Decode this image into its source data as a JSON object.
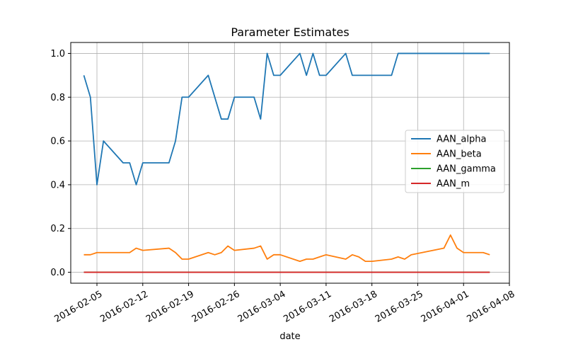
{
  "chart_data": {
    "type": "line",
    "title": "Parameter Estimates",
    "xlabel": "date",
    "ylabel": "",
    "grid": true,
    "legend_position": "center-right",
    "xlim": [
      "2016-02-01",
      "2016-04-08"
    ],
    "ylim": [
      -0.05,
      1.05
    ],
    "x_ticks": [
      "2016-02-05",
      "2016-02-12",
      "2016-02-19",
      "2016-02-26",
      "2016-03-04",
      "2016-03-11",
      "2016-03-18",
      "2016-03-25",
      "2016-04-01",
      "2016-04-08"
    ],
    "y_ticks": [
      "0.0",
      "0.2",
      "0.4",
      "0.6",
      "0.8",
      "1.0"
    ],
    "series": [
      {
        "name": "AAN_alpha",
        "color": "#1f77b4",
        "x": [
          "2016-02-03",
          "2016-02-04",
          "2016-02-05",
          "2016-02-06",
          "2016-02-09",
          "2016-02-10",
          "2016-02-11",
          "2016-02-12",
          "2016-02-16",
          "2016-02-17",
          "2016-02-18",
          "2016-02-19",
          "2016-02-22",
          "2016-02-24",
          "2016-02-25",
          "2016-02-26",
          "2016-02-29",
          "2016-03-01",
          "2016-03-02",
          "2016-03-03",
          "2016-03-04",
          "2016-03-07",
          "2016-03-08",
          "2016-03-09",
          "2016-03-10",
          "2016-03-11",
          "2016-03-14",
          "2016-03-15",
          "2016-03-18",
          "2016-03-21",
          "2016-03-22",
          "2016-03-23",
          "2016-04-05"
        ],
        "values": [
          0.9,
          0.8,
          0.4,
          0.6,
          0.5,
          0.5,
          0.4,
          0.5,
          0.5,
          0.6,
          0.8,
          0.8,
          0.9,
          0.7,
          0.7,
          0.8,
          0.8,
          0.7,
          1.0,
          0.9,
          0.9,
          1.0,
          0.9,
          1.0,
          0.9,
          0.9,
          1.0,
          0.9,
          0.9,
          0.9,
          1.0,
          1.0,
          1.0
        ]
      },
      {
        "name": "AAN_beta",
        "color": "#ff7f0e",
        "x": [
          "2016-02-03",
          "2016-02-04",
          "2016-02-05",
          "2016-02-06",
          "2016-02-09",
          "2016-02-10",
          "2016-02-11",
          "2016-02-12",
          "2016-02-16",
          "2016-02-17",
          "2016-02-18",
          "2016-02-19",
          "2016-02-22",
          "2016-02-23",
          "2016-02-24",
          "2016-02-25",
          "2016-02-26",
          "2016-02-29",
          "2016-03-01",
          "2016-03-02",
          "2016-03-03",
          "2016-03-04",
          "2016-03-07",
          "2016-03-08",
          "2016-03-09",
          "2016-03-10",
          "2016-03-11",
          "2016-03-14",
          "2016-03-15",
          "2016-03-16",
          "2016-03-17",
          "2016-03-18",
          "2016-03-21",
          "2016-03-22",
          "2016-03-23",
          "2016-03-24",
          "2016-03-29",
          "2016-03-30",
          "2016-03-31",
          "2016-04-01",
          "2016-04-04",
          "2016-04-05"
        ],
        "values": [
          0.08,
          0.08,
          0.09,
          0.09,
          0.09,
          0.09,
          0.11,
          0.1,
          0.11,
          0.09,
          0.06,
          0.06,
          0.09,
          0.08,
          0.09,
          0.12,
          0.1,
          0.11,
          0.12,
          0.06,
          0.08,
          0.08,
          0.05,
          0.06,
          0.06,
          0.07,
          0.08,
          0.06,
          0.08,
          0.07,
          0.05,
          0.05,
          0.06,
          0.07,
          0.06,
          0.08,
          0.11,
          0.17,
          0.11,
          0.09,
          0.09,
          0.08
        ]
      },
      {
        "name": "AAN_gamma",
        "color": "#2ca02c",
        "x": [
          "2016-02-03",
          "2016-04-05"
        ],
        "values": [
          0.0,
          0.0
        ]
      },
      {
        "name": "AAN_m",
        "color": "#d62728",
        "x": [
          "2016-02-03",
          "2016-04-05"
        ],
        "values": [
          0.0,
          0.0
        ]
      }
    ]
  }
}
